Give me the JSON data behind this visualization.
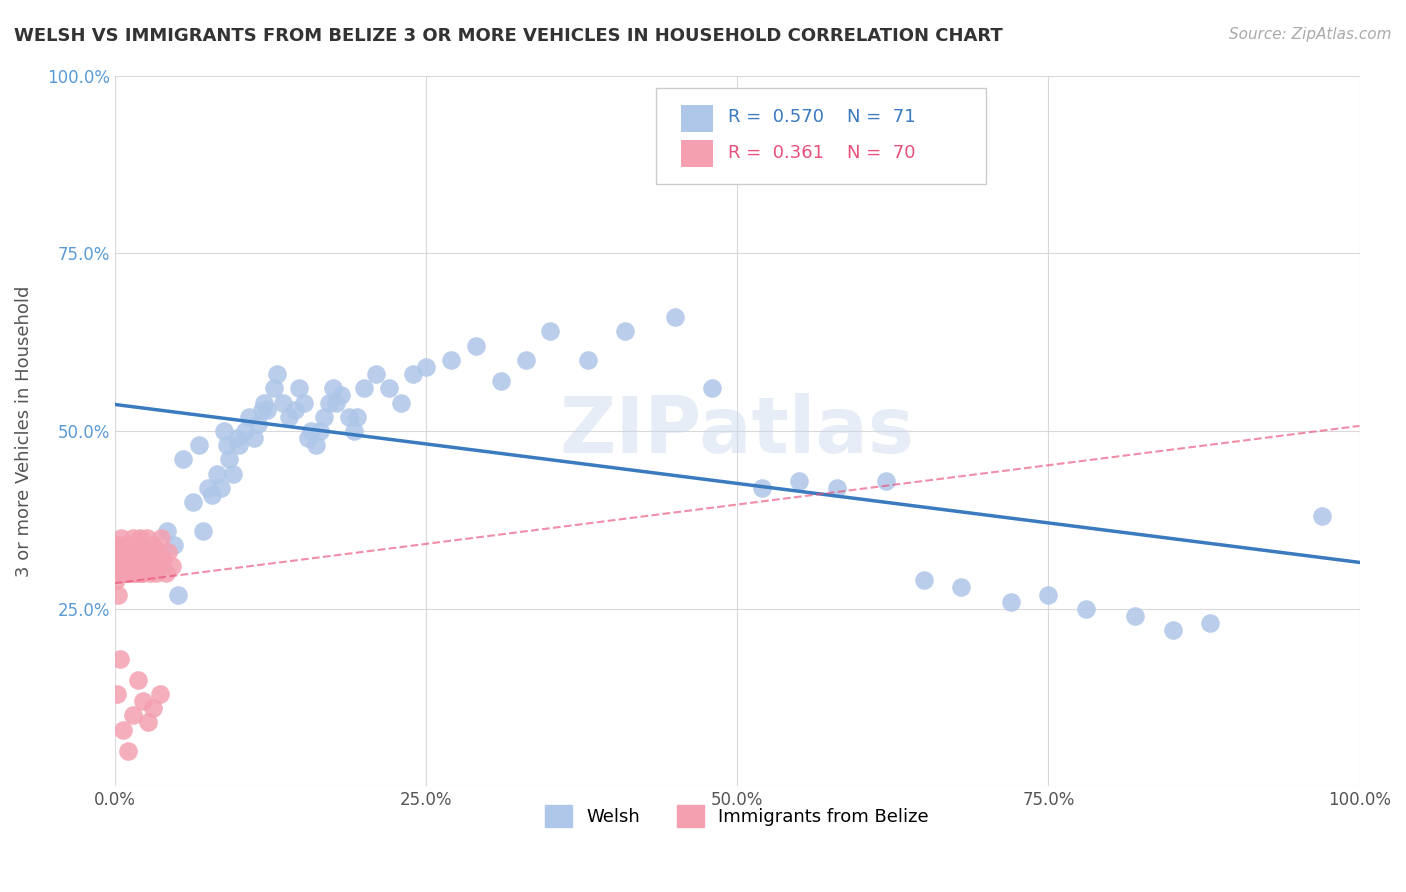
{
  "title": "WELSH VS IMMIGRANTS FROM BELIZE 3 OR MORE VEHICLES IN HOUSEHOLD CORRELATION CHART",
  "source": "Source: ZipAtlas.com",
  "ylabel": "3 or more Vehicles in Household",
  "xlim": [
    0.0,
    1.0
  ],
  "ylim": [
    0.0,
    1.0
  ],
  "xtick_labels": [
    "0.0%",
    "25.0%",
    "50.0%",
    "75.0%",
    "100.0%"
  ],
  "ytick_labels": [
    "",
    "25.0%",
    "50.0%",
    "75.0%",
    "100.0%"
  ],
  "blue_color": "#5b9bd5",
  "pink_color": "#e8507a",
  "blue_scatter_color": "#aec6e8",
  "pink_scatter_color": "#f4a0b0",
  "blue_line_color": "#3a7abf",
  "pink_line_color": "#e8507a",
  "background_color": "#ffffff",
  "grid_color": "#d0d0d0",
  "welsh_x": [
    0.042,
    0.048,
    0.051,
    0.055,
    0.063,
    0.068,
    0.071,
    0.075,
    0.078,
    0.082,
    0.085,
    0.088,
    0.09,
    0.092,
    0.095,
    0.098,
    0.1,
    0.105,
    0.108,
    0.112,
    0.115,
    0.118,
    0.12,
    0.122,
    0.128,
    0.13,
    0.135,
    0.14,
    0.145,
    0.148,
    0.152,
    0.155,
    0.158,
    0.162,
    0.165,
    0.168,
    0.172,
    0.175,
    0.178,
    0.182,
    0.188,
    0.192,
    0.195,
    0.2,
    0.21,
    0.22,
    0.23,
    0.24,
    0.25,
    0.27,
    0.29,
    0.31,
    0.33,
    0.35,
    0.38,
    0.41,
    0.45,
    0.48,
    0.52,
    0.55,
    0.58,
    0.62,
    0.65,
    0.68,
    0.72,
    0.75,
    0.78,
    0.82,
    0.85,
    0.88,
    0.97
  ],
  "welsh_y": [
    0.36,
    0.34,
    0.27,
    0.46,
    0.4,
    0.48,
    0.36,
    0.42,
    0.41,
    0.44,
    0.42,
    0.5,
    0.48,
    0.46,
    0.44,
    0.49,
    0.48,
    0.5,
    0.52,
    0.49,
    0.51,
    0.53,
    0.54,
    0.53,
    0.56,
    0.58,
    0.54,
    0.52,
    0.53,
    0.56,
    0.54,
    0.49,
    0.5,
    0.48,
    0.5,
    0.52,
    0.54,
    0.56,
    0.54,
    0.55,
    0.52,
    0.5,
    0.52,
    0.56,
    0.58,
    0.56,
    0.54,
    0.58,
    0.59,
    0.6,
    0.62,
    0.57,
    0.6,
    0.64,
    0.6,
    0.64,
    0.66,
    0.56,
    0.42,
    0.43,
    0.42,
    0.43,
    0.29,
    0.28,
    0.26,
    0.27,
    0.25,
    0.24,
    0.22,
    0.23,
    0.38
  ],
  "belize_x": [
    0.001,
    0.002,
    0.003,
    0.003,
    0.004,
    0.004,
    0.005,
    0.005,
    0.006,
    0.006,
    0.007,
    0.007,
    0.008,
    0.008,
    0.009,
    0.009,
    0.01,
    0.01,
    0.011,
    0.011,
    0.012,
    0.012,
    0.013,
    0.013,
    0.014,
    0.014,
    0.015,
    0.015,
    0.016,
    0.016,
    0.017,
    0.017,
    0.018,
    0.018,
    0.019,
    0.019,
    0.02,
    0.02,
    0.021,
    0.021,
    0.022,
    0.022,
    0.023,
    0.024,
    0.025,
    0.026,
    0.027,
    0.028,
    0.029,
    0.03,
    0.031,
    0.032,
    0.033,
    0.034,
    0.035,
    0.037,
    0.039,
    0.041,
    0.043,
    0.046,
    0.002,
    0.004,
    0.007,
    0.011,
    0.015,
    0.019,
    0.023,
    0.027,
    0.031,
    0.036
  ],
  "belize_y": [
    0.29,
    0.32,
    0.27,
    0.34,
    0.3,
    0.33,
    0.31,
    0.35,
    0.32,
    0.3,
    0.33,
    0.31,
    0.34,
    0.32,
    0.3,
    0.33,
    0.32,
    0.3,
    0.33,
    0.3,
    0.33,
    0.31,
    0.34,
    0.32,
    0.3,
    0.33,
    0.31,
    0.35,
    0.32,
    0.3,
    0.33,
    0.31,
    0.34,
    0.32,
    0.3,
    0.33,
    0.31,
    0.35,
    0.32,
    0.3,
    0.34,
    0.32,
    0.3,
    0.33,
    0.31,
    0.35,
    0.32,
    0.3,
    0.33,
    0.31,
    0.34,
    0.32,
    0.3,
    0.33,
    0.31,
    0.35,
    0.32,
    0.3,
    0.33,
    0.31,
    0.13,
    0.18,
    0.08,
    0.05,
    0.1,
    0.15,
    0.12,
    0.09,
    0.11,
    0.13
  ]
}
